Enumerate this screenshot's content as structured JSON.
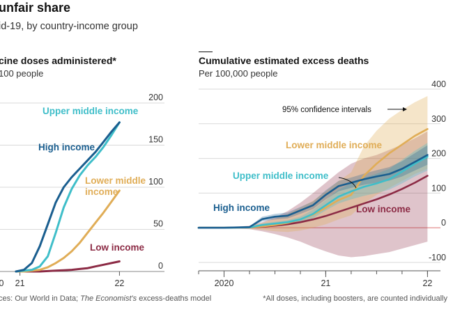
{
  "header": {
    "title": "unfair share",
    "subtitle": "id-19, by country-income group"
  },
  "footer": {
    "source_parts": [
      "ces: Our World in Data; ",
      "The Economist's",
      " excess-deaths model"
    ],
    "note": "*All doses, including boosters, are counted individually"
  },
  "colors": {
    "high_income": "#1a5e8f",
    "upper_middle": "#3fbec9",
    "lower_middle": "#e0ad57",
    "low_income": "#8c2b45",
    "zero_line": "#e8a0a0",
    "grid": "#d9d9d9"
  },
  "chart_data": [
    {
      "type": "line",
      "title": "cine doses administered*",
      "subtitle": "100 people",
      "xlim": [
        2020.8,
        2022.2
      ],
      "ylim": [
        0,
        200
      ],
      "x_ticks": [
        {
          "v": 2021,
          "label": "21"
        },
        {
          "v": 2022,
          "label": "22"
        }
      ],
      "x_partial_label": "0",
      "y_ticks": [
        0,
        50,
        100,
        150,
        200
      ],
      "series": [
        {
          "name": "High income",
          "color_key": "high_income",
          "x": [
            2020.96,
            2021.04,
            2021.12,
            2021.2,
            2021.28,
            2021.36,
            2021.44,
            2021.52,
            2021.6,
            2021.68,
            2021.76,
            2021.84,
            2021.92,
            2022.0
          ],
          "y": [
            0,
            2,
            10,
            30,
            56,
            82,
            100,
            112,
            122,
            132,
            142,
            154,
            166,
            177
          ]
        },
        {
          "name": "Upper middle income",
          "color_key": "upper_middle",
          "x": [
            2020.96,
            2021.04,
            2021.12,
            2021.2,
            2021.28,
            2021.36,
            2021.44,
            2021.52,
            2021.6,
            2021.68,
            2021.76,
            2021.84,
            2021.92,
            2022.0
          ],
          "y": [
            0,
            1,
            2,
            6,
            18,
            46,
            76,
            98,
            114,
            126,
            136,
            148,
            162,
            177
          ]
        },
        {
          "name": "Lower middle income",
          "color_key": "lower_middle",
          "x": [
            2020.96,
            2021.04,
            2021.12,
            2021.2,
            2021.28,
            2021.36,
            2021.44,
            2021.52,
            2021.6,
            2021.68,
            2021.76,
            2021.84,
            2021.92,
            2022.0
          ],
          "y": [
            0,
            0,
            1,
            2,
            5,
            10,
            16,
            24,
            34,
            46,
            58,
            70,
            83,
            96
          ]
        },
        {
          "name": "Low income",
          "color_key": "low_income",
          "x": [
            2020.96,
            2021.04,
            2021.12,
            2021.2,
            2021.28,
            2021.36,
            2021.44,
            2021.52,
            2021.6,
            2021.68,
            2021.76,
            2021.84,
            2021.92,
            2022.0
          ],
          "y": [
            0,
            0,
            0,
            0,
            0.5,
            1,
            1.5,
            2,
            3,
            4,
            6,
            8,
            10,
            12
          ]
        }
      ],
      "labels": [
        {
          "series": "Upper middle income",
          "lines": [
            "Upper middle income"
          ]
        },
        {
          "series": "High income",
          "lines": [
            "High income"
          ]
        },
        {
          "series": "Lower middle income",
          "lines": [
            "Lower middle",
            "income"
          ]
        },
        {
          "series": "Low income",
          "lines": [
            "Low income"
          ]
        }
      ]
    },
    {
      "type": "line",
      "title": "Cumulative estimated excess deaths",
      "subtitle": "Per 100,000 people",
      "xlim": [
        2019.75,
        2022.1
      ],
      "ylim": [
        -100,
        400
      ],
      "x_ticks": [
        {
          "v": 2020,
          "label": "2020"
        },
        {
          "v": 2021,
          "label": "21"
        },
        {
          "v": 2022,
          "label": "22"
        }
      ],
      "x_minor_step": 0.25,
      "y_ticks": [
        -100,
        0,
        100,
        200,
        300,
        400
      ],
      "annotation": "95% confidence intervals",
      "series": [
        {
          "name": "High income",
          "color_key": "high_income",
          "x": [
            2019.75,
            2020.0,
            2020.25,
            2020.375,
            2020.5,
            2020.625,
            2020.75,
            2020.875,
            2021.0,
            2021.125,
            2021.25,
            2021.375,
            2021.5,
            2021.625,
            2021.75,
            2021.875,
            2022.0
          ],
          "y": [
            0,
            0,
            2,
            25,
            32,
            35,
            50,
            65,
            95,
            120,
            130,
            140,
            148,
            155,
            170,
            190,
            210
          ],
          "lower": [
            0,
            0,
            0,
            18,
            24,
            27,
            40,
            54,
            82,
            105,
            115,
            124,
            130,
            136,
            148,
            165,
            182
          ],
          "upper": [
            0,
            0,
            4,
            32,
            40,
            44,
            60,
            76,
            108,
            135,
            145,
            156,
            166,
            175,
            192,
            215,
            238
          ]
        },
        {
          "name": "Upper middle income",
          "color_key": "upper_middle",
          "x": [
            2019.75,
            2020.0,
            2020.25,
            2020.375,
            2020.5,
            2020.625,
            2020.75,
            2020.875,
            2021.0,
            2021.125,
            2021.25,
            2021.375,
            2021.5,
            2021.625,
            2021.75,
            2021.875,
            2022.0
          ],
          "y": [
            0,
            0,
            1,
            8,
            12,
            16,
            24,
            40,
            65,
            90,
            105,
            118,
            128,
            140,
            162,
            185,
            205
          ],
          "lower": [
            0,
            0,
            0,
            4,
            7,
            10,
            16,
            28,
            50,
            70,
            82,
            92,
            100,
            110,
            128,
            148,
            165
          ],
          "upper": [
            0,
            0,
            2,
            12,
            17,
            22,
            32,
            52,
            80,
            110,
            128,
            144,
            156,
            170,
            196,
            222,
            245
          ]
        },
        {
          "name": "Lower middle income",
          "color_key": "lower_middle",
          "x": [
            2019.75,
            2020.0,
            2020.25,
            2020.375,
            2020.5,
            2020.625,
            2020.75,
            2020.875,
            2021.0,
            2021.125,
            2021.25,
            2021.375,
            2021.5,
            2021.625,
            2021.75,
            2021.875,
            2022.0
          ],
          "y": [
            0,
            0,
            1,
            4,
            8,
            14,
            24,
            38,
            58,
            80,
            95,
            150,
            185,
            215,
            240,
            265,
            285
          ],
          "lower": [
            0,
            0,
            -3,
            -6,
            -10,
            -12,
            -8,
            0,
            10,
            24,
            36,
            70,
            95,
            115,
            135,
            155,
            170
          ],
          "upper": [
            0,
            0,
            5,
            14,
            26,
            40,
            58,
            78,
            105,
            135,
            160,
            235,
            280,
            315,
            340,
            362,
            380
          ]
        },
        {
          "name": "Low income",
          "color_key": "low_income",
          "x": [
            2019.75,
            2020.0,
            2020.25,
            2020.375,
            2020.5,
            2020.625,
            2020.75,
            2020.875,
            2021.0,
            2021.125,
            2021.25,
            2021.375,
            2021.5,
            2021.625,
            2021.75,
            2021.875,
            2022.0
          ],
          "y": [
            0,
            0,
            1,
            3,
            6,
            10,
            16,
            24,
            34,
            46,
            58,
            70,
            82,
            96,
            112,
            130,
            150
          ],
          "lower": [
            0,
            0,
            -4,
            -10,
            -18,
            -28,
            -40,
            -55,
            -68,
            -80,
            -85,
            -82,
            -76,
            -70,
            -60,
            -50,
            -40
          ],
          "upper": [
            0,
            0,
            6,
            16,
            30,
            48,
            72,
            100,
            130,
            160,
            185,
            200,
            210,
            225,
            240,
            258,
            278
          ]
        }
      ],
      "labels": [
        {
          "series": "Lower middle income",
          "lines": [
            "Lower middle income"
          ]
        },
        {
          "series": "Upper middle income",
          "lines": [
            "Upper middle income"
          ]
        },
        {
          "series": "High income",
          "lines": [
            "High income"
          ]
        },
        {
          "series": "Low income",
          "lines": [
            "Low income"
          ]
        }
      ]
    }
  ]
}
